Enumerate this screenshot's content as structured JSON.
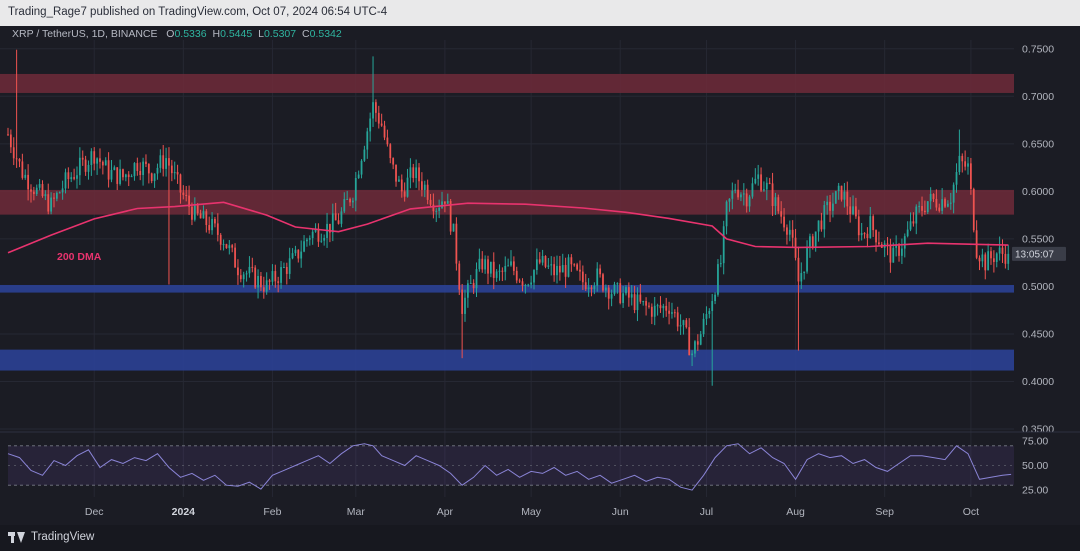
{
  "header": {
    "publisher_text": "Trading_Rage7 published on TradingView.com, Oct 07, 2024 06:54 UTC-4",
    "symbol_text": "XRP / TetherUS, 1D, BINANCE",
    "ohlc": [
      {
        "key": "O",
        "value": "0.5336"
      },
      {
        "key": "H",
        "value": "0.5445"
      },
      {
        "key": "L",
        "value": "0.5307"
      },
      {
        "key": "C",
        "value": "0.5342"
      }
    ]
  },
  "footer": {
    "brand": "TradingView",
    "icon": "tradingview-logo-icon"
  },
  "colors": {
    "up": "#26a69a",
    "down": "#ef5350",
    "dma": "#e8336e",
    "resistance_zone": "#6e2a3a",
    "support_zone": "#2a3f8f",
    "rsi": "#8a84d6"
  },
  "chart_data": [
    {
      "type": "candlestick",
      "pair": "XRP / TetherUS",
      "timeframe": "1D",
      "exchange": "BINANCE",
      "y_ticks": [
        "0.7500",
        "0.7000",
        "0.6500",
        "0.6000",
        "0.5500",
        "0.5000",
        "0.4500",
        "0.4000",
        "0.3500"
      ],
      "ylim": [
        0.35,
        0.755
      ],
      "x_ticks": [
        "Dec",
        "2024",
        "Feb",
        "Mar",
        "Apr",
        "May",
        "Jun",
        "Jul",
        "Aug",
        "Sep",
        "Oct"
      ],
      "x_tick_days": [
        30,
        61,
        92,
        121,
        152,
        182,
        213,
        243,
        274,
        305,
        335
      ],
      "x_range_days": [
        0,
        350
      ],
      "countdown_label": "13:05:07",
      "last_price": 0.5342,
      "zones": [
        {
          "kind": "resistance",
          "low": 0.7035,
          "high": 0.7235
        },
        {
          "kind": "resistance",
          "low": 0.5755,
          "high": 0.6015
        },
        {
          "kind": "support",
          "low": 0.4935,
          "high": 0.5015
        },
        {
          "kind": "support",
          "low": 0.4115,
          "high": 0.4335
        }
      ],
      "moving_average": {
        "label": "200 DMA",
        "points": [
          [
            0,
            0.5355
          ],
          [
            15,
            0.554
          ],
          [
            30,
            0.571
          ],
          [
            45,
            0.582
          ],
          [
            58,
            0.584
          ],
          [
            75,
            0.5885
          ],
          [
            90,
            0.575
          ],
          [
            100,
            0.5625
          ],
          [
            115,
            0.5575
          ],
          [
            125,
            0.5655
          ],
          [
            140,
            0.5815
          ],
          [
            160,
            0.5875
          ],
          [
            180,
            0.5865
          ],
          [
            200,
            0.5825
          ],
          [
            215,
            0.578
          ],
          [
            230,
            0.5715
          ],
          [
            245,
            0.5635
          ],
          [
            250,
            0.55
          ],
          [
            260,
            0.542
          ],
          [
            275,
            0.541
          ],
          [
            300,
            0.542
          ],
          [
            320,
            0.5455
          ],
          [
            340,
            0.544
          ],
          [
            348,
            0.5435
          ]
        ]
      },
      "price_path": [
        [
          0,
          0.66
        ],
        [
          5,
          0.62
        ],
        [
          10,
          0.6
        ],
        [
          15,
          0.585
        ],
        [
          20,
          0.61
        ],
        [
          25,
          0.625
        ],
        [
          30,
          0.64
        ],
        [
          35,
          0.62
        ],
        [
          40,
          0.615
        ],
        [
          45,
          0.63
        ],
        [
          50,
          0.62
        ],
        [
          55,
          0.635
        ],
        [
          60,
          0.6
        ],
        [
          65,
          0.575
        ],
        [
          70,
          0.565
        ],
        [
          75,
          0.55
        ],
        [
          80,
          0.52
        ],
        [
          85,
          0.51
        ],
        [
          90,
          0.5
        ],
        [
          95,
          0.515
        ],
        [
          100,
          0.53
        ],
        [
          105,
          0.555
        ],
        [
          110,
          0.56
        ],
        [
          115,
          0.57
        ],
        [
          120,
          0.6
        ],
        [
          123,
          0.64
        ],
        [
          127,
          0.69
        ],
        [
          130,
          0.67
        ],
        [
          133,
          0.63
        ],
        [
          137,
          0.6
        ],
        [
          141,
          0.62
        ],
        [
          145,
          0.605
        ],
        [
          149,
          0.585
        ],
        [
          152,
          0.595
        ],
        [
          155,
          0.555
        ],
        [
          158,
          0.48
        ],
        [
          161,
          0.5
        ],
        [
          165,
          0.525
        ],
        [
          170,
          0.51
        ],
        [
          175,
          0.52
        ],
        [
          180,
          0.505
        ],
        [
          185,
          0.525
        ],
        [
          190,
          0.515
        ],
        [
          195,
          0.52
        ],
        [
          200,
          0.505
        ],
        [
          205,
          0.51
        ],
        [
          210,
          0.495
        ],
        [
          215,
          0.49
        ],
        [
          220,
          0.48
        ],
        [
          225,
          0.475
        ],
        [
          230,
          0.48
        ],
        [
          235,
          0.455
        ],
        [
          238,
          0.43
        ],
        [
          241,
          0.45
        ],
        [
          245,
          0.49
        ],
        [
          248,
          0.525
        ],
        [
          250,
          0.58
        ],
        [
          253,
          0.605
        ],
        [
          257,
          0.595
        ],
        [
          261,
          0.615
        ],
        [
          265,
          0.6
        ],
        [
          268,
          0.58
        ],
        [
          272,
          0.56
        ],
        [
          275,
          0.505
        ],
        [
          278,
          0.535
        ],
        [
          282,
          0.565
        ],
        [
          286,
          0.585
        ],
        [
          290,
          0.6
        ],
        [
          294,
          0.575
        ],
        [
          297,
          0.555
        ],
        [
          300,
          0.565
        ],
        [
          304,
          0.545
        ],
        [
          308,
          0.53
        ],
        [
          312,
          0.55
        ],
        [
          316,
          0.575
        ],
        [
          320,
          0.59
        ],
        [
          324,
          0.59
        ],
        [
          328,
          0.595
        ],
        [
          331,
          0.63
        ],
        [
          334,
          0.625
        ],
        [
          337,
          0.54
        ],
        [
          340,
          0.525
        ],
        [
          344,
          0.535
        ],
        [
          348,
          0.5342
        ]
      ],
      "price_spikes": [
        {
          "day": 3,
          "high": 0.749
        },
        {
          "day": 56,
          "low": 0.502
        },
        {
          "day": 127,
          "high": 0.742
        },
        {
          "day": 158,
          "low": 0.4245
        },
        {
          "day": 245,
          "low": 0.3955
        },
        {
          "day": 275,
          "low": 0.4325
        },
        {
          "day": 331,
          "high": 0.665
        }
      ]
    },
    {
      "type": "line",
      "indicator": "RSI",
      "y_ticks": [
        "75.00",
        "50.00",
        "25.00"
      ],
      "ylim": [
        18,
        82
      ],
      "levels": [
        70,
        30
      ],
      "mid_level": 50,
      "x_range_days": [
        0,
        350
      ],
      "points": [
        [
          0,
          62
        ],
        [
          4,
          58
        ],
        [
          8,
          45
        ],
        [
          12,
          40
        ],
        [
          16,
          55
        ],
        [
          20,
          50
        ],
        [
          24,
          60
        ],
        [
          28,
          66
        ],
        [
          32,
          48
        ],
        [
          36,
          56
        ],
        [
          40,
          52
        ],
        [
          44,
          58
        ],
        [
          48,
          55
        ],
        [
          52,
          62
        ],
        [
          56,
          48
        ],
        [
          60,
          38
        ],
        [
          64,
          42
        ],
        [
          68,
          35
        ],
        [
          72,
          40
        ],
        [
          76,
          30
        ],
        [
          80,
          29
        ],
        [
          84,
          33
        ],
        [
          88,
          26
        ],
        [
          92,
          40
        ],
        [
          96,
          45
        ],
        [
          100,
          50
        ],
        [
          104,
          55
        ],
        [
          108,
          60
        ],
        [
          112,
          52
        ],
        [
          116,
          62
        ],
        [
          120,
          70
        ],
        [
          124,
          72
        ],
        [
          127,
          70
        ],
        [
          130,
          60
        ],
        [
          134,
          55
        ],
        [
          138,
          50
        ],
        [
          142,
          60
        ],
        [
          146,
          55
        ],
        [
          150,
          50
        ],
        [
          154,
          42
        ],
        [
          158,
          30
        ],
        [
          162,
          38
        ],
        [
          166,
          50
        ],
        [
          170,
          40
        ],
        [
          174,
          46
        ],
        [
          178,
          38
        ],
        [
          182,
          44
        ],
        [
          186,
          42
        ],
        [
          190,
          48
        ],
        [
          194,
          40
        ],
        [
          198,
          44
        ],
        [
          202,
          36
        ],
        [
          206,
          40
        ],
        [
          210,
          32
        ],
        [
          214,
          36
        ],
        [
          218,
          40
        ],
        [
          222,
          34
        ],
        [
          226,
          38
        ],
        [
          230,
          36
        ],
        [
          234,
          28
        ],
        [
          238,
          25
        ],
        [
          242,
          40
        ],
        [
          246,
          58
        ],
        [
          250,
          70
        ],
        [
          254,
          72
        ],
        [
          258,
          62
        ],
        [
          262,
          68
        ],
        [
          266,
          58
        ],
        [
          270,
          52
        ],
        [
          274,
          36
        ],
        [
          278,
          56
        ],
        [
          282,
          62
        ],
        [
          286,
          58
        ],
        [
          290,
          60
        ],
        [
          294,
          52
        ],
        [
          298,
          56
        ],
        [
          302,
          48
        ],
        [
          306,
          44
        ],
        [
          310,
          52
        ],
        [
          314,
          60
        ],
        [
          318,
          60
        ],
        [
          322,
          58
        ],
        [
          326,
          56
        ],
        [
          330,
          70
        ],
        [
          334,
          62
        ],
        [
          338,
          36
        ],
        [
          342,
          38
        ],
        [
          346,
          40
        ],
        [
          349,
          41
        ]
      ]
    }
  ]
}
